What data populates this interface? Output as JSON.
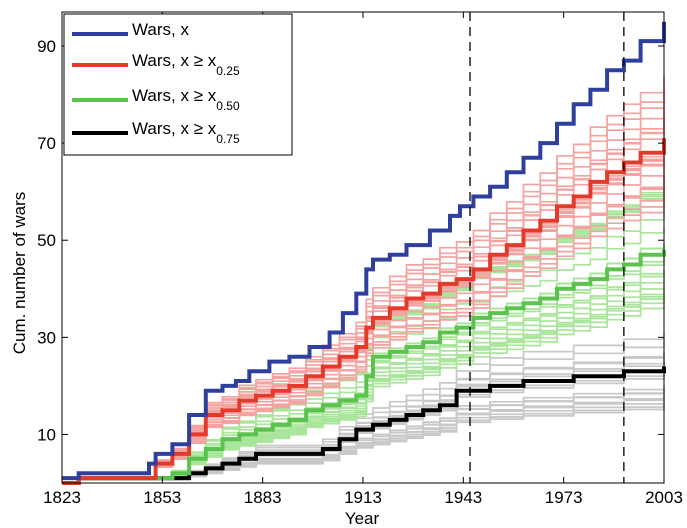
{
  "chart_data": {
    "type": "line",
    "xlabel": "Year",
    "ylabel": "Cum. number of wars",
    "xlim": [
      1823,
      2003
    ],
    "ylim": [
      0,
      97
    ],
    "xticks": [
      1823,
      1853,
      1883,
      1913,
      1943,
      1973,
      2003
    ],
    "yticks": [
      10,
      30,
      50,
      70,
      90
    ],
    "vlines": [
      1945,
      1991
    ],
    "legend_position": "top-left",
    "colors": {
      "x": "#2e3f9e",
      "q25": "#e33a2c",
      "q50": "#5cc24e",
      "q75": "#000000",
      "q25_bands": "#f4a3a0",
      "q50_bands": "#a9e59b",
      "q75_bands": "#c8c8c8"
    },
    "legend": [
      {
        "key": "x",
        "base": "Wars, x",
        "sub": ""
      },
      {
        "key": "q25",
        "base": "Wars, x ≥ x",
        "sub": "0.25"
      },
      {
        "key": "q50",
        "base": "Wars, x ≥ x",
        "sub": "0.50"
      },
      {
        "key": "q75",
        "base": "Wars, x ≥ x",
        "sub": "0.75"
      }
    ],
    "series": [
      {
        "key": "x",
        "points": [
          [
            1823,
            1
          ],
          [
            1828,
            2
          ],
          [
            1845,
            2
          ],
          [
            1849,
            4
          ],
          [
            1851,
            6
          ],
          [
            1856,
            8
          ],
          [
            1861,
            14
          ],
          [
            1866,
            19
          ],
          [
            1871,
            20
          ],
          [
            1875,
            21
          ],
          [
            1879,
            23
          ],
          [
            1885,
            25
          ],
          [
            1891,
            26
          ],
          [
            1897,
            28
          ],
          [
            1903,
            31
          ],
          [
            1907,
            35
          ],
          [
            1911,
            39
          ],
          [
            1914,
            44
          ],
          [
            1916,
            46
          ],
          [
            1921,
            47
          ],
          [
            1926,
            49
          ],
          [
            1933,
            52
          ],
          [
            1939,
            55
          ],
          [
            1942,
            57
          ],
          [
            1946,
            59
          ],
          [
            1951,
            61
          ],
          [
            1956,
            64
          ],
          [
            1961,
            67
          ],
          [
            1966,
            70
          ],
          [
            1971,
            74
          ],
          [
            1976,
            78
          ],
          [
            1981,
            81
          ],
          [
            1986,
            85
          ],
          [
            1991,
            87
          ],
          [
            1996,
            91
          ],
          [
            2003,
            95
          ]
        ]
      },
      {
        "key": "q25",
        "points": [
          [
            1823,
            0
          ],
          [
            1828,
            1
          ],
          [
            1848,
            1
          ],
          [
            1851,
            4
          ],
          [
            1856,
            6
          ],
          [
            1861,
            10
          ],
          [
            1866,
            14
          ],
          [
            1871,
            15
          ],
          [
            1876,
            17
          ],
          [
            1881,
            18
          ],
          [
            1886,
            19
          ],
          [
            1891,
            20
          ],
          [
            1896,
            22
          ],
          [
            1901,
            24
          ],
          [
            1906,
            26
          ],
          [
            1911,
            28
          ],
          [
            1914,
            32
          ],
          [
            1916,
            34
          ],
          [
            1921,
            36
          ],
          [
            1926,
            38
          ],
          [
            1931,
            39
          ],
          [
            1936,
            41
          ],
          [
            1941,
            42
          ],
          [
            1946,
            44
          ],
          [
            1951,
            47
          ],
          [
            1956,
            49
          ],
          [
            1961,
            52
          ],
          [
            1966,
            54
          ],
          [
            1971,
            57
          ],
          [
            1976,
            59
          ],
          [
            1981,
            62
          ],
          [
            1986,
            64
          ],
          [
            1991,
            66
          ],
          [
            1996,
            68
          ],
          [
            2003,
            71
          ]
        ]
      },
      {
        "key": "q50",
        "points": [
          [
            1823,
            0
          ],
          [
            1828,
            1
          ],
          [
            1853,
            1
          ],
          [
            1856,
            2
          ],
          [
            1861,
            5
          ],
          [
            1866,
            7
          ],
          [
            1871,
            9
          ],
          [
            1876,
            10
          ],
          [
            1881,
            11
          ],
          [
            1886,
            12
          ],
          [
            1891,
            13
          ],
          [
            1896,
            15
          ],
          [
            1901,
            16
          ],
          [
            1906,
            17
          ],
          [
            1911,
            18
          ],
          [
            1914,
            22
          ],
          [
            1916,
            26
          ],
          [
            1921,
            27
          ],
          [
            1926,
            28
          ],
          [
            1931,
            29
          ],
          [
            1936,
            31
          ],
          [
            1941,
            32
          ],
          [
            1946,
            34
          ],
          [
            1951,
            35
          ],
          [
            1956,
            36
          ],
          [
            1961,
            37
          ],
          [
            1966,
            38
          ],
          [
            1971,
            40
          ],
          [
            1976,
            41
          ],
          [
            1981,
            42
          ],
          [
            1986,
            44
          ],
          [
            1991,
            45
          ],
          [
            1996,
            47
          ],
          [
            2003,
            48
          ]
        ]
      },
      {
        "key": "q75",
        "points": [
          [
            1823,
            0
          ],
          [
            1828,
            1
          ],
          [
            1858,
            1
          ],
          [
            1861,
            2
          ],
          [
            1866,
            3
          ],
          [
            1871,
            4
          ],
          [
            1876,
            5
          ],
          [
            1881,
            6
          ],
          [
            1896,
            6
          ],
          [
            1901,
            7
          ],
          [
            1906,
            9
          ],
          [
            1911,
            11
          ],
          [
            1916,
            12
          ],
          [
            1921,
            13
          ],
          [
            1926,
            14
          ],
          [
            1931,
            15
          ],
          [
            1936,
            16
          ],
          [
            1941,
            19
          ],
          [
            1946,
            19
          ],
          [
            1951,
            20
          ],
          [
            1961,
            21
          ],
          [
            1971,
            21
          ],
          [
            1976,
            22
          ],
          [
            1986,
            22
          ],
          [
            1991,
            23
          ],
          [
            1996,
            23
          ],
          [
            2003,
            24
          ]
        ]
      }
    ]
  }
}
